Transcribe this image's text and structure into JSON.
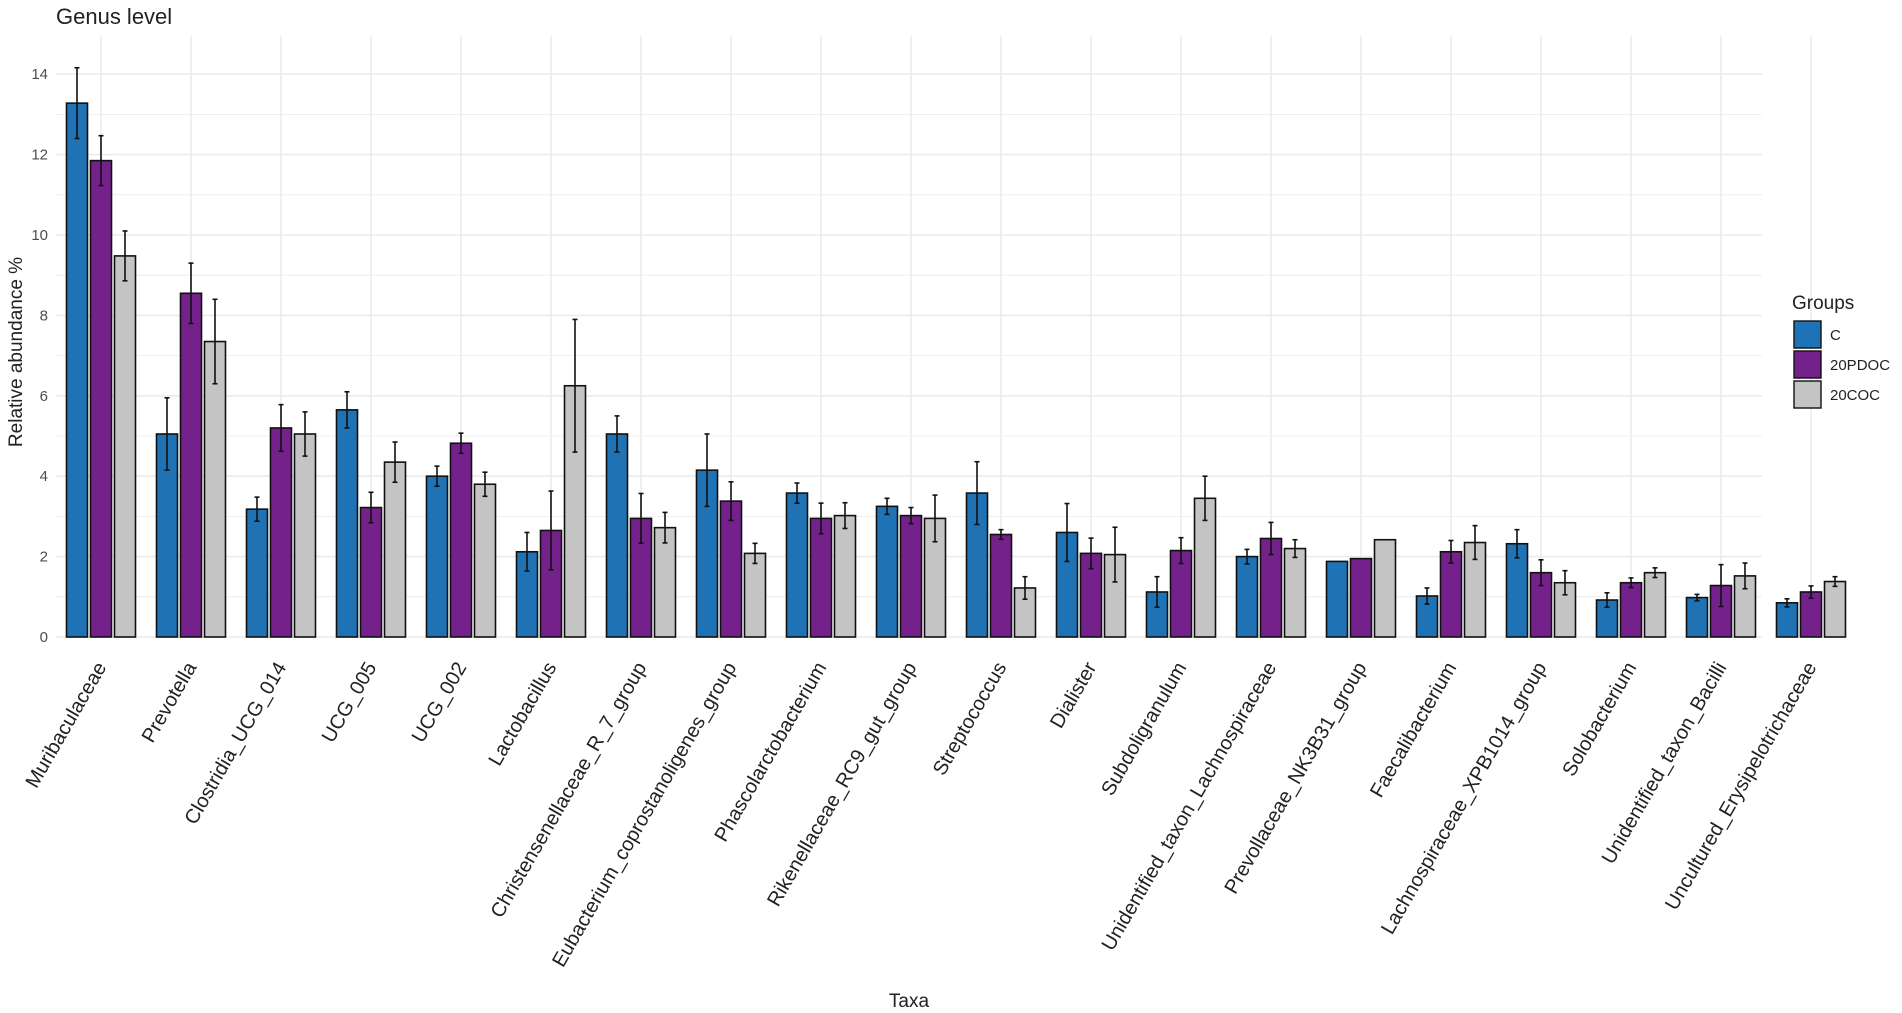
{
  "chart_data": {
    "type": "bar",
    "title": "Genus level",
    "xlabel": "Taxa",
    "ylabel": "Relative abundance %",
    "ylim": [
      0,
      14.5
    ],
    "yticks": [
      0,
      2,
      4,
      6,
      8,
      10,
      12,
      14
    ],
    "grid": true,
    "legend": {
      "title": "Groups",
      "position": "right"
    },
    "categories": [
      "Muribaculaceae",
      "Prevotella",
      "Clostridia_UCG_014",
      "UCG_005",
      "UCG_002",
      "Lactobacillus",
      "Christensenellaceae_R_7_group",
      "Eubacterium_coprostanoligenes_group",
      "Phascolarctobacterium",
      "Rikenellaceae_RC9_gut_group",
      "Streptococcus",
      "Dialister",
      "Subdoligranulum",
      "Unidentified_taxon_Lachnospiraceae",
      "Prevollaceae_NK3B31_group",
      "Faecalibacterium",
      "Lachnospiraceae_XPB1014_group",
      "Solobacterium",
      "Unidentified_taxon_Bacilli",
      "Uncultured_Erysipelotrichaceae"
    ],
    "series": [
      {
        "name": "C",
        "color": "#1f72b4",
        "values": [
          13.28,
          5.05,
          3.18,
          5.65,
          4.0,
          2.12,
          5.05,
          4.15,
          3.58,
          3.25,
          3.58,
          2.6,
          1.12,
          2.0,
          1.88,
          1.02,
          2.32,
          0.92,
          0.98,
          0.85
        ],
        "errors": [
          0.88,
          0.9,
          0.3,
          0.45,
          0.25,
          0.48,
          0.45,
          0.9,
          0.25,
          0.2,
          0.78,
          0.72,
          0.38,
          0.18,
          0,
          0.2,
          0.35,
          0.18,
          0.08,
          0.1
        ]
      },
      {
        "name": "20PDOC",
        "color": "#74218b",
        "values": [
          11.85,
          8.55,
          5.2,
          3.22,
          4.82,
          2.65,
          2.95,
          3.38,
          2.95,
          3.02,
          2.55,
          2.08,
          2.15,
          2.45,
          1.95,
          2.12,
          1.6,
          1.35,
          1.28,
          1.12
        ],
        "errors": [
          0.62,
          0.75,
          0.58,
          0.38,
          0.25,
          0.98,
          0.62,
          0.48,
          0.38,
          0.2,
          0.12,
          0.38,
          0.32,
          0.4,
          0,
          0.28,
          0.32,
          0.12,
          0.52,
          0.15
        ]
      },
      {
        "name": "20COC",
        "color": "#c4c4c4",
        "values": [
          9.48,
          7.35,
          5.05,
          4.35,
          3.8,
          6.25,
          2.72,
          2.08,
          3.02,
          2.95,
          1.22,
          2.05,
          3.45,
          2.2,
          2.42,
          2.35,
          1.35,
          1.6,
          1.52,
          1.38
        ],
        "errors": [
          0.62,
          1.05,
          0.55,
          0.5,
          0.3,
          1.65,
          0.38,
          0.25,
          0.32,
          0.58,
          0.28,
          0.68,
          0.55,
          0.22,
          0,
          0.42,
          0.3,
          0.12,
          0.32,
          0.12
        ]
      }
    ]
  }
}
